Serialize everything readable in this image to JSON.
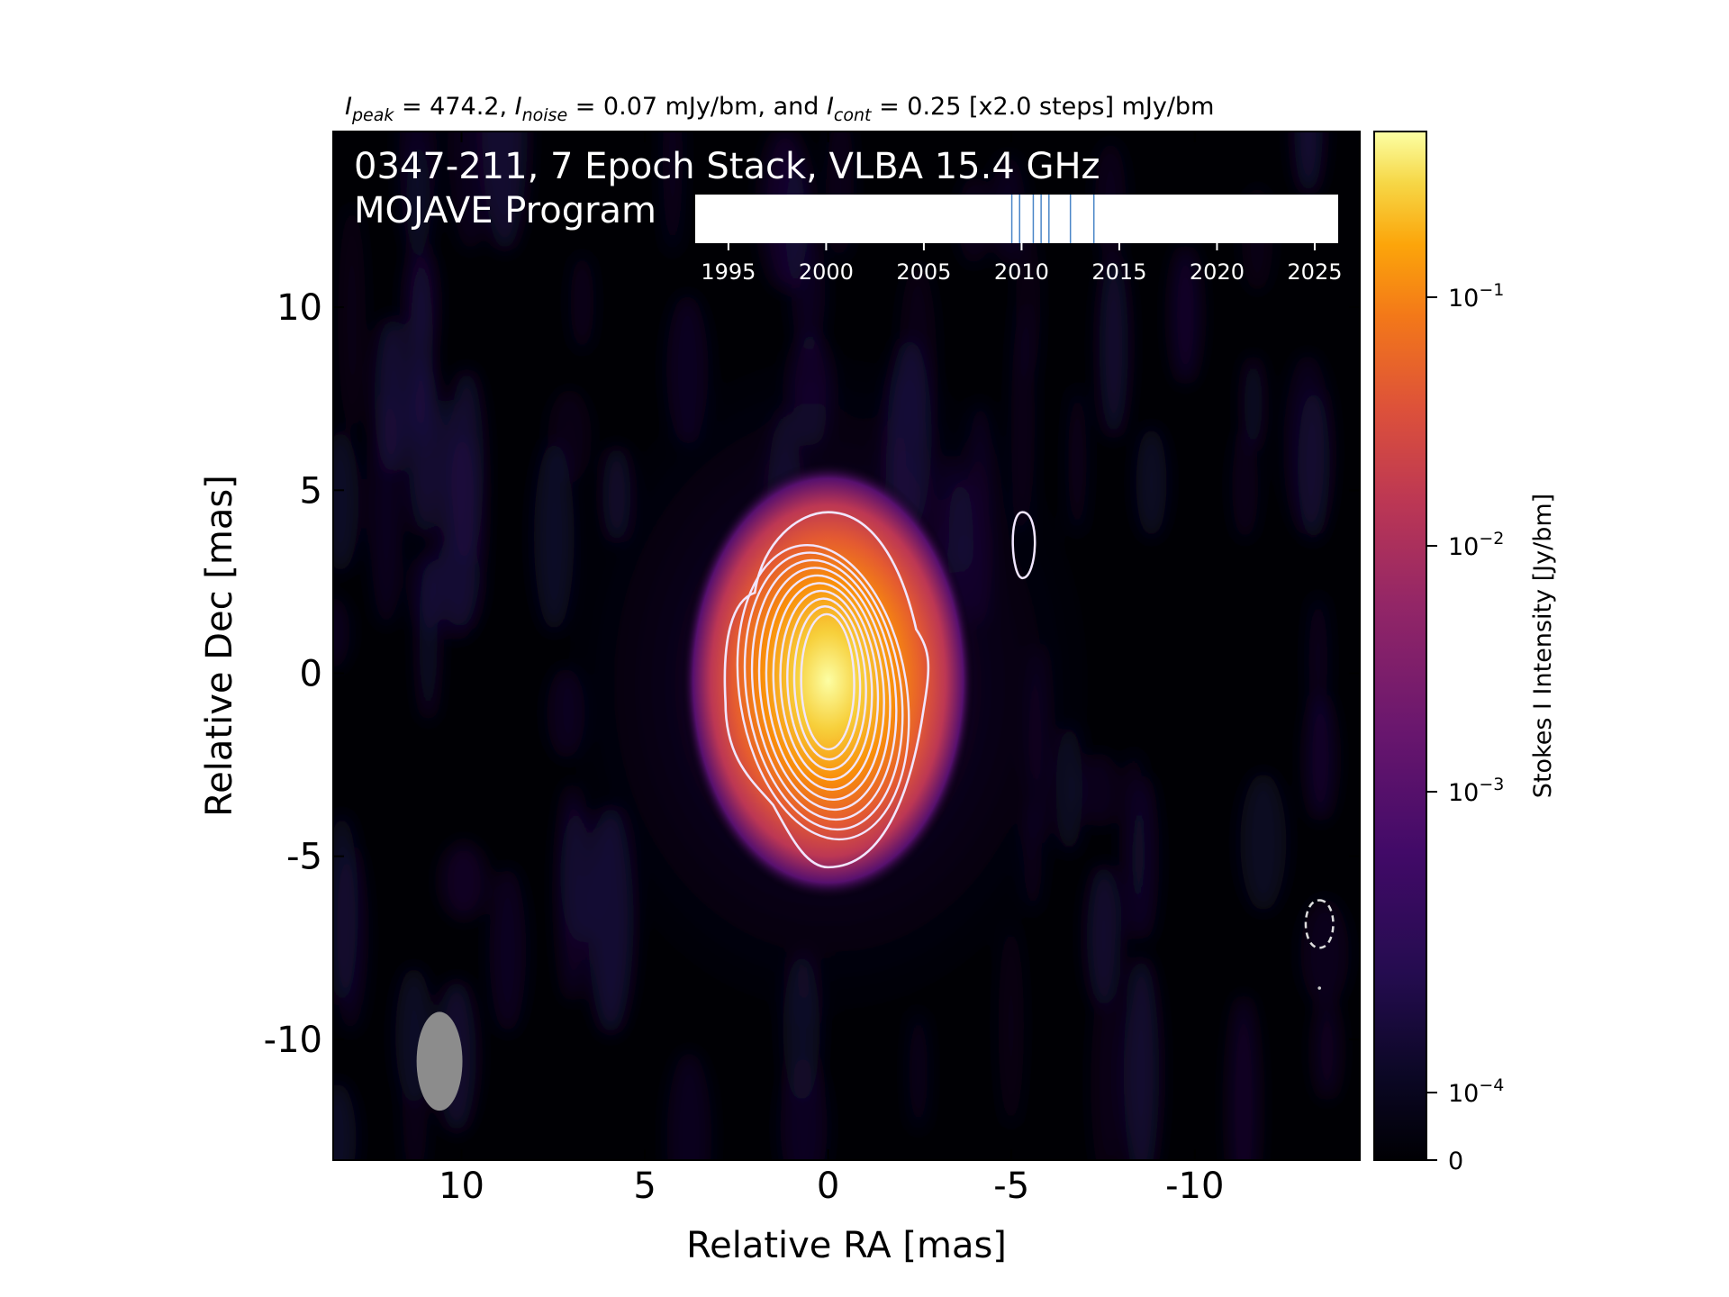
{
  "chart_data": {
    "type": "heatmap",
    "title_parts": {
      "i1": "I",
      "s1": "peak",
      "t1": " = 474.2, ",
      "i2": "I",
      "s2": "noise",
      "t2": " = 0.07 mJy/bm, and ",
      "i3": "I",
      "s3": "cont",
      "t3": " = 0.25 [x2.0 steps] mJy/bm"
    },
    "overlay_title_line1": "0347-211, 7 Epoch Stack, VLBA 15.4 GHz",
    "overlay_title_line2": "MOJAVE Program",
    "xlabel": "Relative RA [mas]",
    "ylabel": "Relative Dec [mas]",
    "xlim": [
      13.5,
      -14.5
    ],
    "ylim": [
      -13.3,
      14.8
    ],
    "x_ticks": [
      10,
      5,
      0,
      -5,
      -10
    ],
    "x_tick_labels": [
      "10",
      "5",
      "0",
      "-5",
      "-10"
    ],
    "y_ticks": [
      10,
      5,
      0,
      -5,
      -10
    ],
    "y_tick_labels": [
      "10",
      "5",
      "0",
      "-5",
      "-10"
    ],
    "colormap": "inferno",
    "colorbar": {
      "label": "Stokes I Intensity [Jy/bm]",
      "scale": "log",
      "ticks": [
        {
          "value": 0.1,
          "base": "10",
          "exp": "−1"
        },
        {
          "value": 0.01,
          "base": "10",
          "exp": "−2"
        },
        {
          "value": 0.001,
          "base": "10",
          "exp": "−3"
        },
        {
          "value": 0.0001,
          "base": "10",
          "exp": "−4"
        },
        {
          "value": 0,
          "base": "0",
          "exp": ""
        }
      ]
    },
    "core": {
      "ra": 0.0,
      "dec": -0.2,
      "peak_jy_per_beam": 0.4742
    },
    "contour_levels_mjy": [
      0.25,
      0.5,
      1,
      2,
      4,
      8,
      16,
      32,
      64,
      128,
      256
    ],
    "beam": {
      "ra": 10.6,
      "dec": -10.6,
      "major_mas": 2.7,
      "minor_mas": 1.25,
      "pa_deg": 0
    },
    "epoch_timeline": {
      "xlim": [
        1993.3,
        2026.2
      ],
      "ticks": [
        1995,
        2000,
        2005,
        2010,
        2015,
        2020,
        2025
      ],
      "tick_labels": [
        "1995",
        "2000",
        "2005",
        "2010",
        "2015",
        "2020",
        "2025"
      ],
      "epochs": [
        2009.5,
        2009.9,
        2010.6,
        2011.0,
        2011.4,
        2012.5,
        2013.7
      ]
    }
  },
  "colors": {
    "background": "#000004",
    "contour": "#f1e6ff",
    "negative_contour": "#dddddd",
    "beam": "#8c8c8c",
    "epoch_line": "#4a86c8",
    "text": "#000000",
    "overlay_text": "#ffffff"
  }
}
